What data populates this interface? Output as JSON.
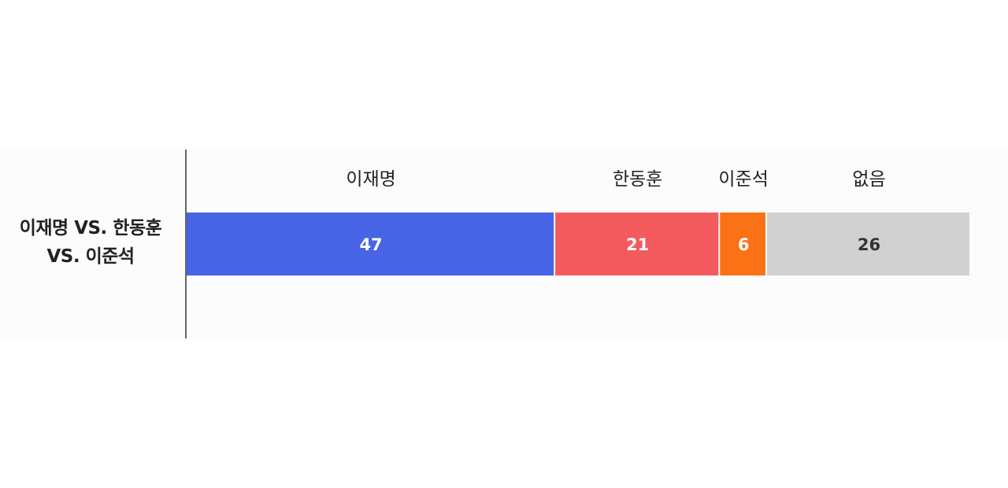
{
  "chart_data": {
    "type": "bar",
    "orientation": "horizontal-stacked",
    "row_label": [
      "이재명 VS. 한동훈",
      "VS. 이준석"
    ],
    "categories": [
      "이재명",
      "한동훈",
      "이준석",
      "없음"
    ],
    "values": [
      47,
      21,
      6,
      26
    ],
    "colors": [
      "#4664e4",
      "#f35a5e",
      "#fa7215",
      "#d1d1d1"
    ],
    "label_colors": [
      "#ffffff",
      "#ffffff",
      "#ffffff",
      "#333333"
    ],
    "xlim": [
      0,
      100
    ]
  }
}
